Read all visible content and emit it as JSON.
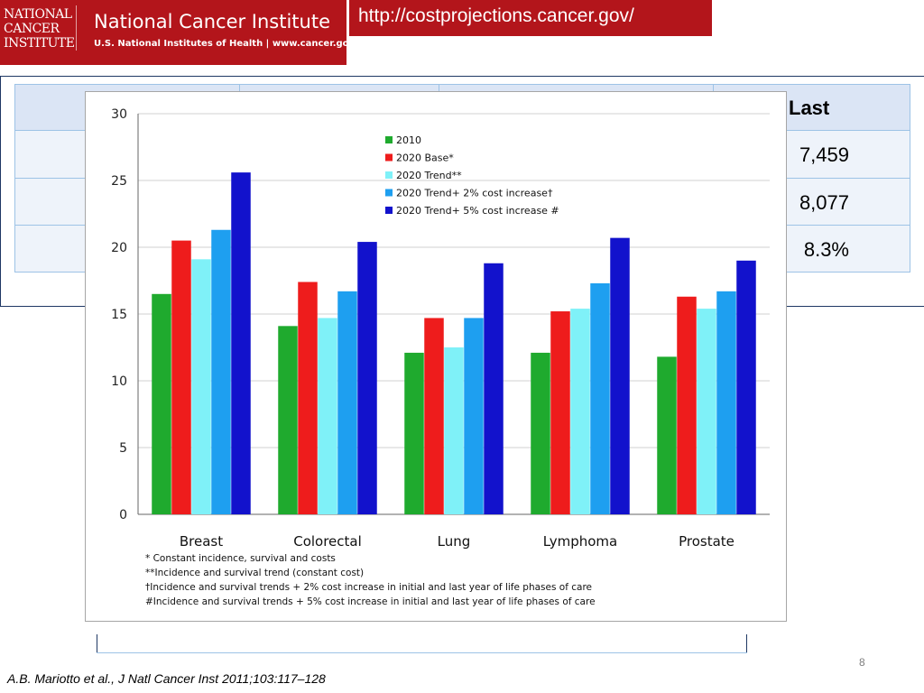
{
  "banner": {
    "logo_lines": [
      "NATIONAL",
      "CANCER",
      "INSTITUTE"
    ],
    "title": "National Cancer Institute",
    "subtitle": "U.S. National Institutes of Health  |  www.cancer.gov",
    "url": "http://costprojections.cancer.gov/",
    "color": "#b3151b"
  },
  "background_table": {
    "header_fragment": "Last",
    "cells": [
      "7,459",
      "8,077",
      "8.3%"
    ]
  },
  "chart_data": {
    "type": "bar",
    "categories": [
      "Breast",
      "Colorectal",
      "Lung",
      "Lymphoma",
      "Prostate"
    ],
    "series": [
      {
        "name": "2010",
        "color": "#1faa2e",
        "values": [
          16.5,
          14.1,
          12.1,
          12.1,
          11.8
        ]
      },
      {
        "name": "2020 Base*",
        "color": "#ee1c1c",
        "values": [
          20.5,
          17.4,
          14.7,
          15.2,
          16.3
        ]
      },
      {
        "name": "2020 Trend**",
        "color": "#7ff1f8",
        "values": [
          19.1,
          14.7,
          12.5,
          15.4,
          15.4
        ]
      },
      {
        "name": "2020 Trend+ 2% cost increase†",
        "color": "#1e9ff0",
        "values": [
          21.3,
          16.7,
          14.7,
          17.3,
          16.7
        ]
      },
      {
        "name": "2020 Trend+ 5% cost increase #",
        "color": "#1212cc",
        "values": [
          25.6,
          20.4,
          18.8,
          20.7,
          19.0
        ]
      }
    ],
    "ylim": [
      0,
      30
    ],
    "yticks": [
      0,
      5,
      10,
      15,
      20,
      25,
      30
    ],
    "grid": true,
    "legend_position": "top-center",
    "notes": [
      "* Constant incidence, survival and costs",
      "**Incidence and survival trend (constant cost)",
      "†Incidence and survival trends + 2% cost increase in initial and last year of life phases of care",
      "#Incidence and survival trends + 5% cost increase in initial and last year of life phases of care"
    ]
  },
  "footer": {
    "page_number": "8",
    "citation": "A.B. Mariotto et al., J Natl Cancer Inst 2011;103:117–128"
  }
}
